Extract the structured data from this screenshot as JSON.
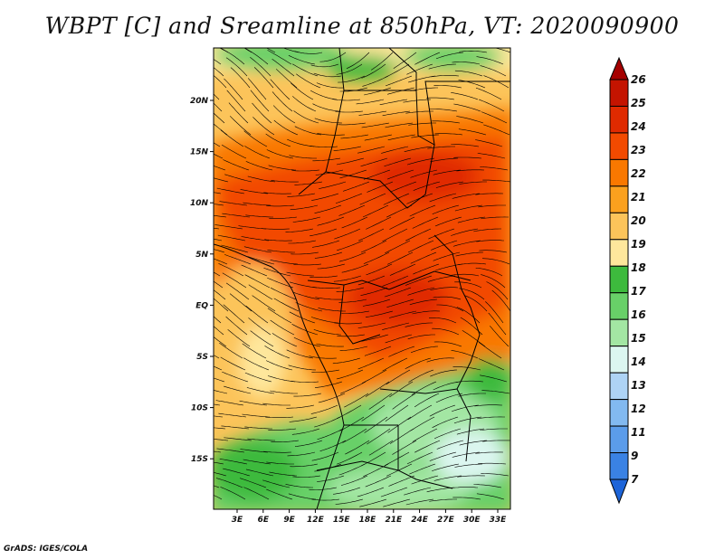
{
  "title": "WBPT [C] and Sreamline at 850hPa, VT: 2020090900",
  "footer": "GrADS: IGES/COLA",
  "map": {
    "lon_labels": [
      "3E",
      "6E",
      "9E",
      "12E",
      "15E",
      "18E",
      "21E",
      "24E",
      "27E",
      "30E",
      "33E"
    ],
    "lat_labels": [
      "20N",
      "15N",
      "10N",
      "5N",
      "EQ",
      "5S",
      "10S",
      "15S"
    ]
  },
  "colorbar": {
    "labels": [
      "26",
      "25",
      "24",
      "23",
      "22",
      "21",
      "20",
      "19",
      "18",
      "17",
      "16",
      "15",
      "14",
      "13",
      "12",
      "11",
      "9",
      "7"
    ],
    "colors": [
      "#a50000",
      "#c41400",
      "#e02a00",
      "#f24a00",
      "#f97800",
      "#fba11e",
      "#fcc45a",
      "#fee79c",
      "#3dba3d",
      "#68d068",
      "#a3e6a3",
      "#dcf6f0",
      "#aed3f5",
      "#82b9f0",
      "#5b9cea",
      "#3a82e4",
      "#1d64d8"
    ]
  }
}
